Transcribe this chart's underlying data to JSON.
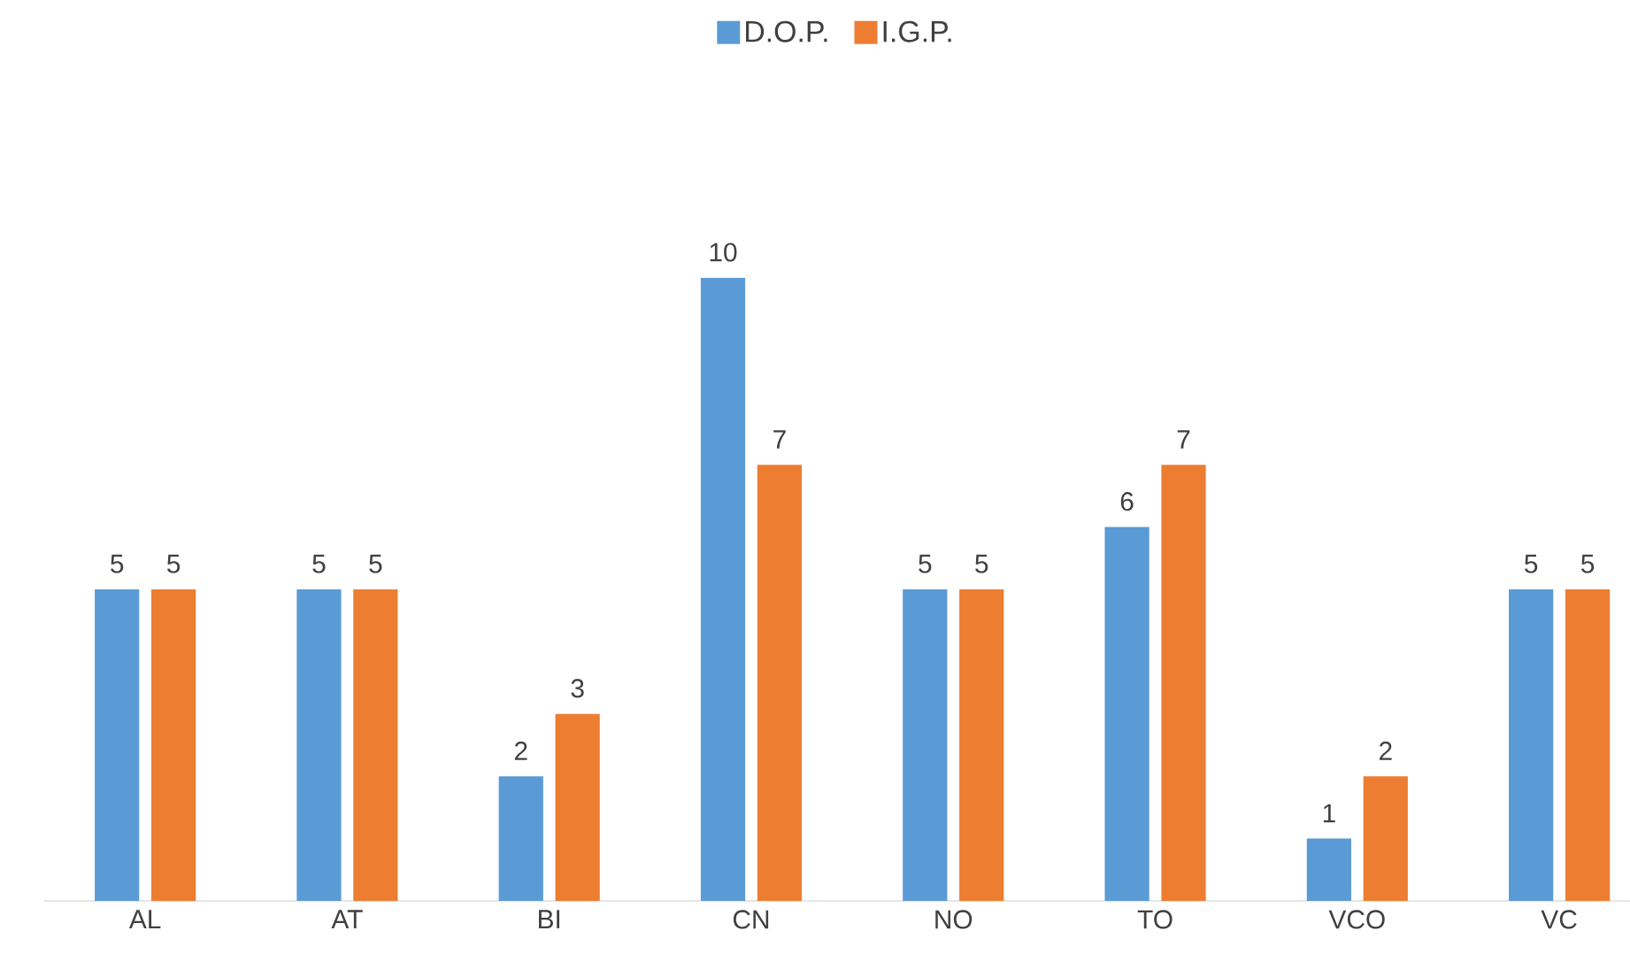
{
  "chart_data": {
    "type": "bar",
    "categories": [
      "AL",
      "AT",
      "BI",
      "CN",
      "NO",
      "TO",
      "VCO",
      "VC"
    ],
    "series": [
      {
        "name": "D.O.P.",
        "color": "#5b9bd5",
        "values": [
          5,
          5,
          2,
          10,
          5,
          6,
          1,
          5
        ]
      },
      {
        "name": "I.G.P.",
        "color": "#ed7d31",
        "values": [
          5,
          5,
          3,
          7,
          5,
          7,
          2,
          5
        ]
      }
    ],
    "data_labels": true,
    "legend": "top"
  }
}
